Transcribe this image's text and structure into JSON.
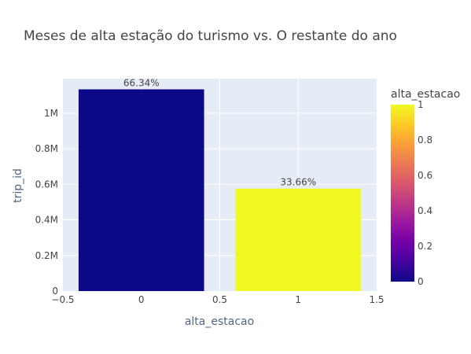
{
  "chart_data": {
    "type": "bar",
    "title": "Meses de alta estação do turismo vs. O restante do ano",
    "xlabel": "alta_estacao",
    "ylabel": "trip_id",
    "x": [
      0,
      1
    ],
    "values": [
      1134000,
      576000
    ],
    "text_labels": [
      "66.34%",
      "33.66%"
    ],
    "bar_colors": [
      "#0d0887",
      "#f0f921"
    ],
    "xlim": [
      -0.5,
      1.5
    ],
    "ylim": [
      0,
      1194000
    ],
    "x_ticks": [
      -0.5,
      0,
      0.5,
      1,
      1.5
    ],
    "x_tick_labels": [
      "−0.5",
      "0",
      "0.5",
      "1",
      "1.5"
    ],
    "y_ticks": [
      0,
      200000,
      400000,
      600000,
      800000,
      1000000
    ],
    "y_tick_labels": [
      "0",
      "0.2M",
      "0.4M",
      "0.6M",
      "0.8M",
      "1M"
    ],
    "colorbar": {
      "title": "alta_estacao",
      "range": [
        0,
        1
      ],
      "ticks": [
        0,
        0.2,
        0.4,
        0.6,
        0.8,
        1
      ],
      "tick_labels": [
        "0",
        "0.2",
        "0.4",
        "0.6",
        "0.8",
        "1"
      ],
      "colorscale": [
        "#0d0887",
        "#46039f",
        "#7201a8",
        "#9c179e",
        "#bd3786",
        "#d8576b",
        "#ed7953",
        "#fb9f3a",
        "#fdca26",
        "#f0f921"
      ]
    },
    "grid": true,
    "plot_bg": "#e5ecf6"
  }
}
